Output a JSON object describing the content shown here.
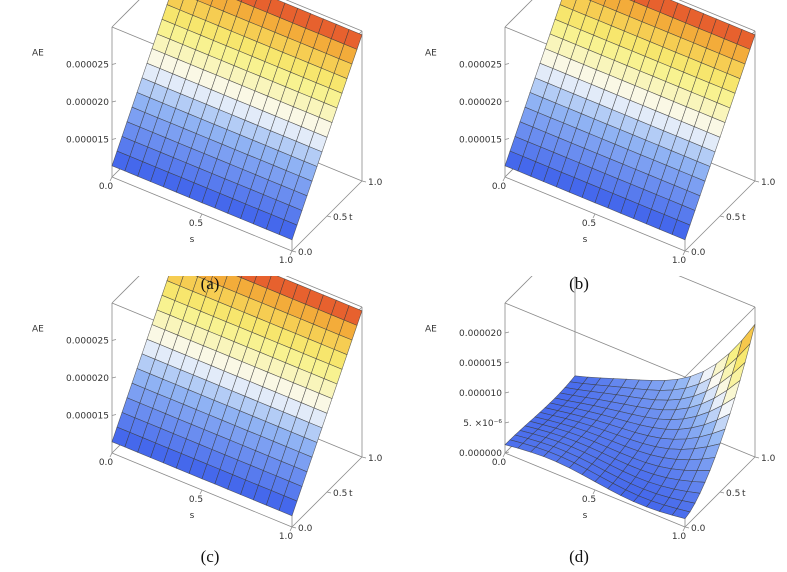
{
  "colors": {
    "box": "#8a8a8a",
    "mesh": "#3a3a3a"
  },
  "chart_data": [
    {
      "type": "surface",
      "caption": "(a)",
      "zlabel": "AE",
      "xlabel": "s",
      "ylabel": "t",
      "xlim": [
        0,
        1
      ],
      "ylim": [
        0,
        1
      ],
      "zlim": [
        1e-05,
        3e-05
      ],
      "xticks": [
        "0.0",
        "0.5",
        "1.0"
      ],
      "yticks": [
        "0.0",
        "0.5",
        "1.0"
      ],
      "zticks": [
        "0.000015",
        "0.000020",
        "0.000025"
      ],
      "model": "linear_t",
      "zmin": 1.15e-05,
      "zmax": 2.95e-05,
      "grid": 14
    },
    {
      "type": "surface",
      "caption": "(b)",
      "zlabel": "AE",
      "xlabel": "s",
      "ylabel": "t",
      "xlim": [
        0,
        1
      ],
      "ylim": [
        0,
        1
      ],
      "zlim": [
        1e-05,
        3e-05
      ],
      "xticks": [
        "0.0",
        "0.5",
        "1.0"
      ],
      "yticks": [
        "0.0",
        "0.5",
        "1.0"
      ],
      "zticks": [
        "0.000015",
        "0.000020",
        "0.000025"
      ],
      "model": "linear_t",
      "zmin": 1.15e-05,
      "zmax": 2.95e-05,
      "grid": 14
    },
    {
      "type": "surface",
      "caption": "(c)",
      "zlabel": "AE",
      "xlabel": "s",
      "ylabel": "t",
      "xlim": [
        0,
        1
      ],
      "ylim": [
        0,
        1
      ],
      "zlim": [
        1e-05,
        3e-05
      ],
      "xticks": [
        "0.0",
        "0.5",
        "1.0"
      ],
      "yticks": [
        "0.0",
        "0.5",
        "1.0"
      ],
      "zticks": [
        "0.000015",
        "0.000020",
        "0.000025"
      ],
      "model": "linear_t",
      "zmin": 1.15e-05,
      "zmax": 2.95e-05,
      "grid": 14
    },
    {
      "type": "surface",
      "caption": "(d)",
      "zlabel": "AE",
      "xlabel": "s",
      "ylabel": "t",
      "xlim": [
        0,
        1
      ],
      "ylim": [
        0,
        1
      ],
      "zlim": [
        0,
        2.5e-05
      ],
      "xticks": [
        "0.0",
        "0.5",
        "1.0"
      ],
      "yticks": [
        "0.0",
        "0.5",
        "1.0"
      ],
      "zticks": [
        "0.000000",
        "5. ×10⁻⁶",
        "0.000010",
        "0.000015",
        "0.000020"
      ],
      "model": "wave_corner",
      "zmin": 0.0,
      "zmax": 2.3e-05,
      "grid": 14
    }
  ]
}
